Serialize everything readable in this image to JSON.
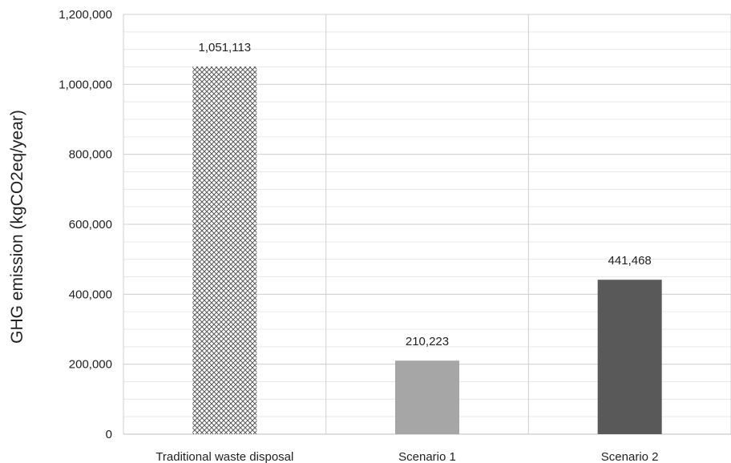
{
  "chart_data": {
    "type": "bar",
    "title": "",
    "xlabel": "",
    "ylabel": "GHG emission (kgCO2eq/year)",
    "ylim": [
      0,
      1200000
    ],
    "yticks": [
      0,
      200000,
      400000,
      600000,
      800000,
      1000000,
      1200000
    ],
    "ytick_labels": [
      "0",
      "200,000",
      "400,000",
      "600,000",
      "800,000",
      "1,000,000",
      "1,200,000"
    ],
    "grid": true,
    "categories": [
      "Traditional waste disposal",
      "Scenario 1",
      "Scenario 2"
    ],
    "values": [
      1051113,
      210223,
      441468
    ],
    "data_labels": [
      "1,051,113",
      "210,223",
      "441,468"
    ],
    "bar_fills": [
      "crosshatch-pattern",
      "#a6a6a6",
      "#595959"
    ]
  }
}
